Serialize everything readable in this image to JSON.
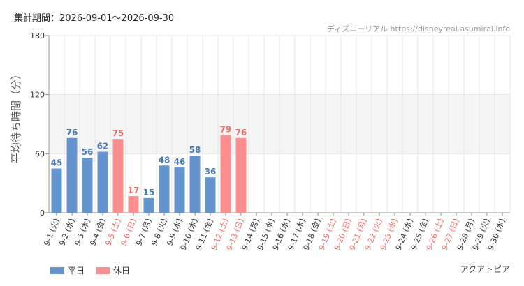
{
  "header": {
    "period_label": "集計期間：2026-09-01〜2026-09-30",
    "source": "ディズニーリアル https://disneyreal.asumirai.info"
  },
  "footer": {
    "attraction": "アクアトピア"
  },
  "legend": [
    {
      "name": "平日",
      "color": "#6495cf"
    },
    {
      "name": "休日",
      "color": "#ff8e8e"
    }
  ],
  "colors": {
    "weekday_bar": "#6495cf",
    "holiday_bar": "#ff8e8e",
    "weekday_text": "#4a7ab5",
    "holiday_text": "#ef6e6e",
    "grid": "#e5e5e5",
    "band": "#f5f5f5"
  },
  "chart_data": {
    "type": "bar",
    "ylabel": "平均待ち時間（分）",
    "xlabel": "",
    "ylim": [
      0,
      180
    ],
    "yticks": [
      0,
      60,
      120,
      180
    ],
    "bands": [
      [
        60,
        120
      ]
    ],
    "grid": true,
    "legend_position": "bottom-left",
    "categories": [
      "9-1 (火)",
      "9-2 (水)",
      "9-3 (木)",
      "9-4 (金)",
      "9-5 (土)",
      "9-6 (日)",
      "9-7 (月)",
      "9-8 (火)",
      "9-9 (水)",
      "9-10 (木)",
      "9-11 (金)",
      "9-12 (土)",
      "9-13 (日)",
      "9-14 (月)",
      "9-15 (水)",
      "9-16 (水)",
      "9-17 (木)",
      "9-18 (金)",
      "9-19 (土)",
      "9-20 (日)",
      "9-21 (月)",
      "9-22 (火)",
      "9-23 (水)",
      "9-24 (水)",
      "9-25 (金)",
      "9-26 (土)",
      "9-27 (日)",
      "9-28 (月)",
      "9-29 (火)",
      "9-30 (水)"
    ],
    "holiday": [
      false,
      false,
      false,
      false,
      true,
      true,
      false,
      false,
      false,
      false,
      false,
      true,
      true,
      false,
      false,
      false,
      false,
      false,
      true,
      true,
      true,
      true,
      true,
      false,
      false,
      true,
      true,
      false,
      false,
      false
    ],
    "values": [
      45,
      76,
      56,
      62,
      75,
      17,
      15,
      48,
      46,
      58,
      36,
      79,
      76,
      null,
      null,
      null,
      null,
      null,
      null,
      null,
      null,
      null,
      null,
      null,
      null,
      null,
      null,
      null,
      null,
      null
    ]
  }
}
